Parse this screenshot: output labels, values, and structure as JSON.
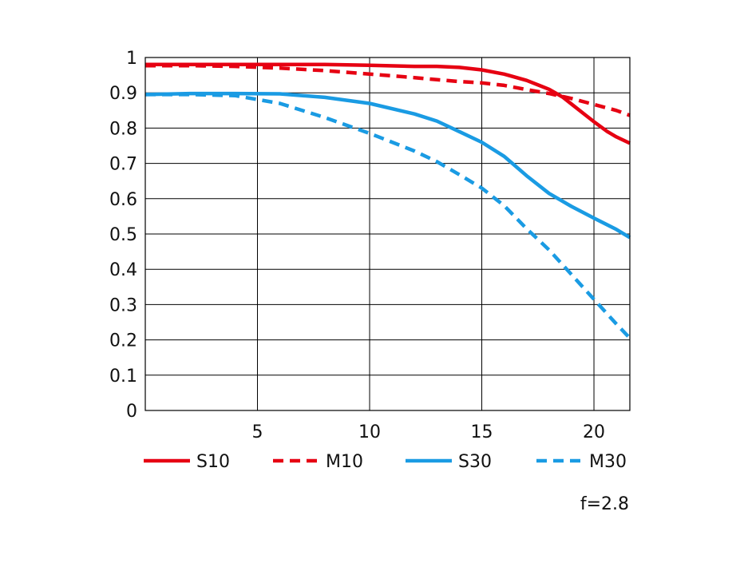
{
  "chart_data": {
    "type": "line",
    "title": "",
    "xlabel": "",
    "ylabel": "",
    "xlim": [
      0,
      21.6
    ],
    "ylim": [
      0,
      1
    ],
    "x_ticks": [
      5,
      10,
      15,
      20
    ],
    "x_tick_labels": [
      "5",
      "10",
      "15",
      "20"
    ],
    "y_ticks": [
      0,
      0.1,
      0.2,
      0.3,
      0.4,
      0.5,
      0.6,
      0.7,
      0.8,
      0.9,
      1
    ],
    "y_tick_labels": [
      "0",
      "0.1",
      "0.2",
      "0.3",
      "0.4",
      "0.5",
      "0.6",
      "0.7",
      "0.8",
      "0.9",
      "1"
    ],
    "grid": true,
    "legend_position": "bottom",
    "annotation": "f=2.8",
    "series": [
      {
        "name": "S10",
        "color": "#e60012",
        "dash": "solid",
        "x": [
          0,
          2,
          4,
          6,
          8,
          10,
          12,
          13,
          14,
          15,
          16,
          17,
          17.6,
          18,
          18.6,
          19,
          19.6,
          20,
          20.6,
          21,
          21.6
        ],
        "y": [
          0.98,
          0.98,
          0.98,
          0.98,
          0.98,
          0.978,
          0.975,
          0.975,
          0.972,
          0.965,
          0.953,
          0.935,
          0.92,
          0.91,
          0.888,
          0.868,
          0.838,
          0.818,
          0.79,
          0.775,
          0.757
        ]
      },
      {
        "name": "M10",
        "color": "#e60012",
        "dash": "dashed",
        "x": [
          0,
          2,
          4,
          6,
          8,
          10,
          12,
          13,
          14,
          15,
          16,
          17,
          18,
          19,
          20,
          21,
          21.6
        ],
        "y": [
          0.977,
          0.977,
          0.975,
          0.97,
          0.963,
          0.953,
          0.943,
          0.937,
          0.932,
          0.928,
          0.921,
          0.909,
          0.898,
          0.884,
          0.867,
          0.85,
          0.836
        ]
      },
      {
        "name": "S30",
        "color": "#1a9be3",
        "dash": "solid",
        "x": [
          0,
          2,
          4,
          6,
          8,
          10,
          12,
          13,
          14,
          15,
          16,
          17,
          18,
          19,
          20,
          21,
          21.6
        ],
        "y": [
          0.895,
          0.898,
          0.898,
          0.897,
          0.887,
          0.87,
          0.84,
          0.82,
          0.79,
          0.76,
          0.72,
          0.665,
          0.615,
          0.578,
          0.545,
          0.513,
          0.49
        ]
      },
      {
        "name": "M30",
        "color": "#1a9be3",
        "dash": "dashed",
        "x": [
          0,
          2,
          4,
          6,
          8,
          10,
          12,
          13,
          14,
          15,
          16,
          17,
          18,
          19,
          20,
          21,
          21.6
        ],
        "y": [
          0.895,
          0.895,
          0.892,
          0.87,
          0.83,
          0.785,
          0.735,
          0.705,
          0.668,
          0.63,
          0.58,
          0.515,
          0.455,
          0.385,
          0.315,
          0.245,
          0.205
        ]
      }
    ]
  }
}
